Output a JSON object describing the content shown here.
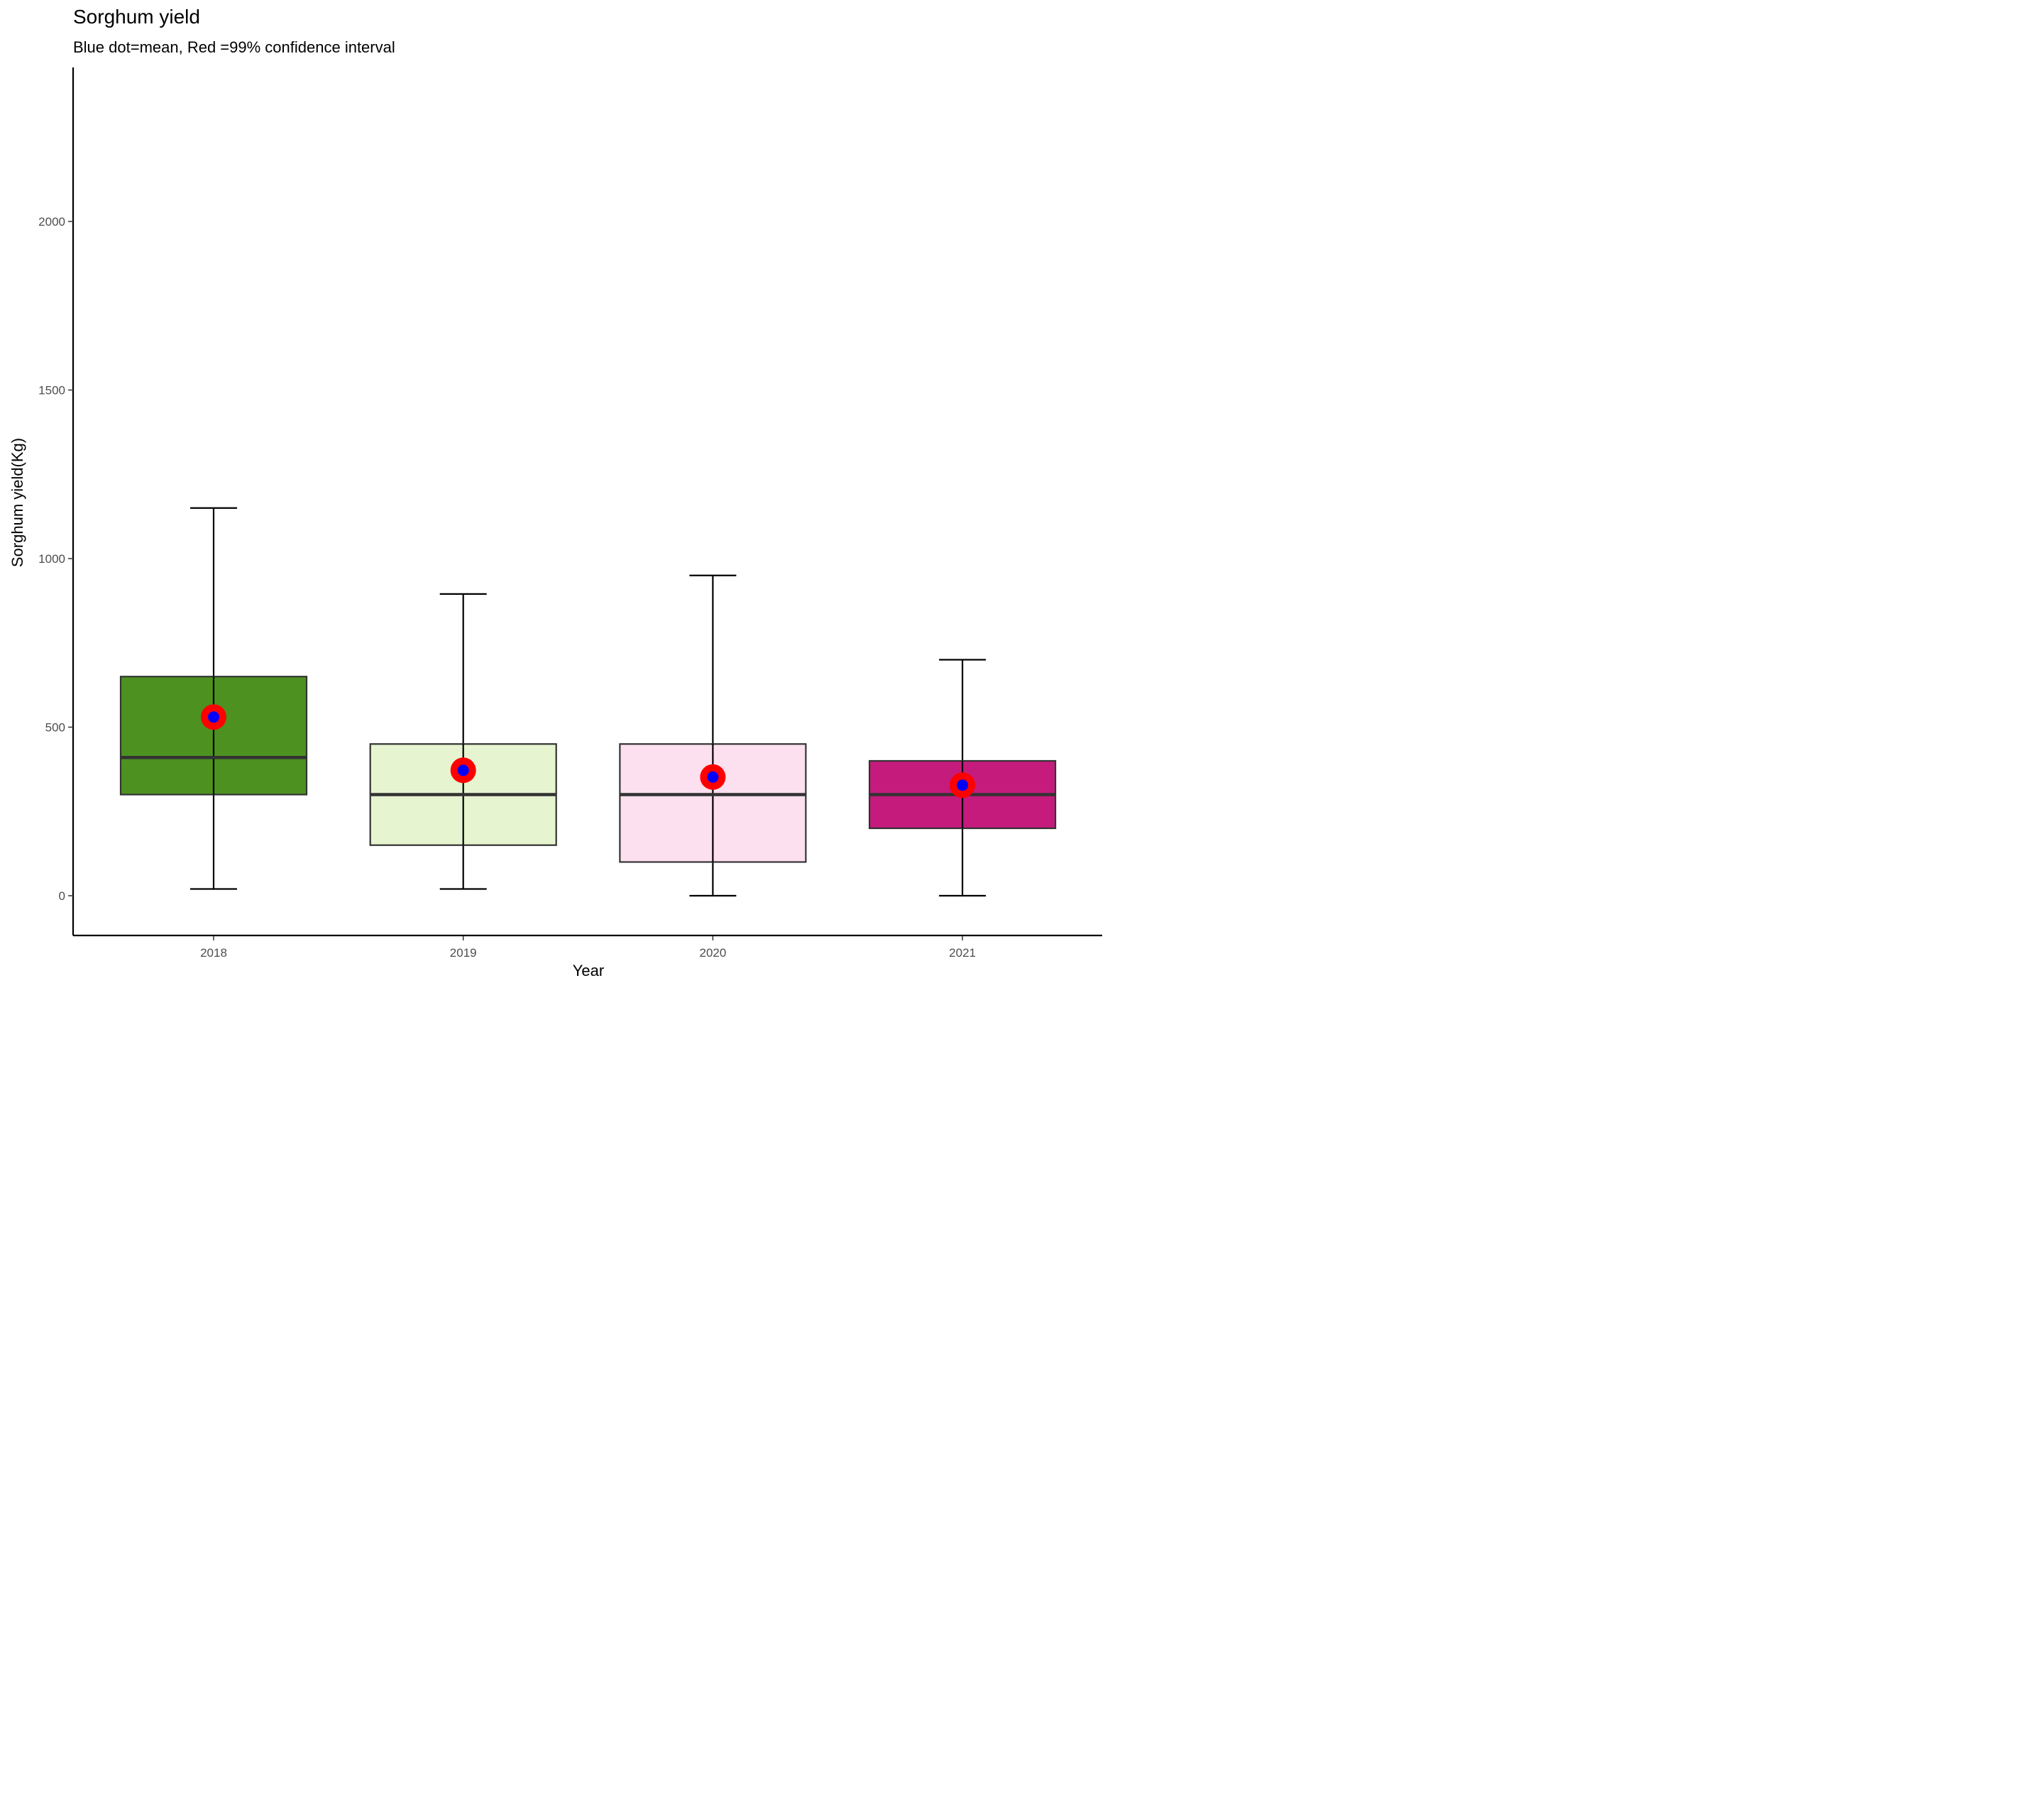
{
  "chart_data": {
    "type": "boxplot",
    "title": "Sorghum yield",
    "subtitle": "Blue dot=mean, Red =99% confidence interval",
    "xlabel": "Year",
    "ylabel": "Sorghum yield(Kg)",
    "ylim": [
      -120,
      2460
    ],
    "yticks": [
      0,
      500,
      1000,
      1500,
      2000
    ],
    "grid": false,
    "categories": [
      "2018",
      "2019",
      "2020",
      "2021"
    ],
    "boxes": [
      {
        "category": "2018",
        "min": 20,
        "q1": 300,
        "median": 410,
        "q3": 650,
        "max": 1150,
        "mean": 530,
        "fill": "#4d9221"
      },
      {
        "category": "2019",
        "min": 20,
        "q1": 150,
        "median": 300,
        "q3": 450,
        "max": 895,
        "mean": 372,
        "fill": "#e6f5d0"
      },
      {
        "category": "2020",
        "min": 0,
        "q1": 100,
        "median": 300,
        "q3": 450,
        "max": 950,
        "mean": 352,
        "fill": "#fde0ef"
      },
      {
        "category": "2021",
        "min": 0,
        "q1": 200,
        "median": 300,
        "q3": 400,
        "max": 700,
        "mean": 328,
        "fill": "#c51b7d"
      }
    ],
    "mean_color": "#0000ff",
    "ci_color": "#ff0000"
  }
}
